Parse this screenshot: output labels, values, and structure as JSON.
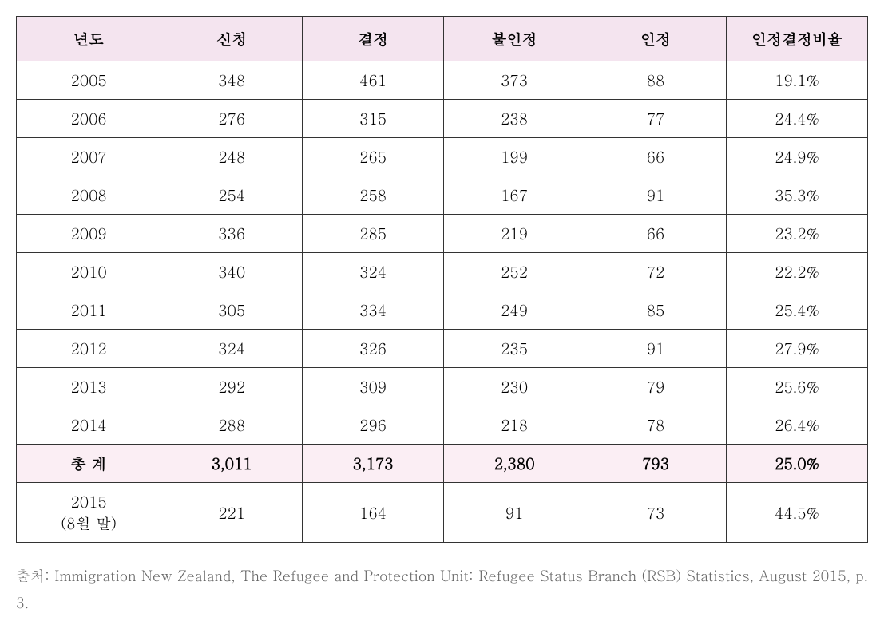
{
  "table": {
    "headers": [
      "년도",
      "신청",
      "결정",
      "불인정",
      "인정",
      "인정결정비율"
    ],
    "rows": [
      {
        "year": "2005",
        "apply": "348",
        "decide": "461",
        "reject": "373",
        "approve": "88",
        "rate": "19.1%",
        "total": false
      },
      {
        "year": "2006",
        "apply": "276",
        "decide": "315",
        "reject": "238",
        "approve": "77",
        "rate": "24.4%",
        "total": false
      },
      {
        "year": "2007",
        "apply": "248",
        "decide": "265",
        "reject": "199",
        "approve": "66",
        "rate": "24.9%",
        "total": false
      },
      {
        "year": "2008",
        "apply": "254",
        "decide": "258",
        "reject": "167",
        "approve": "91",
        "rate": "35.3%",
        "total": false
      },
      {
        "year": "2009",
        "apply": "336",
        "decide": "285",
        "reject": "219",
        "approve": "66",
        "rate": "23.2%",
        "total": false
      },
      {
        "year": "2010",
        "apply": "340",
        "decide": "324",
        "reject": "252",
        "approve": "72",
        "rate": "22.2%",
        "total": false
      },
      {
        "year": "2011",
        "apply": "305",
        "decide": "334",
        "reject": "249",
        "approve": "85",
        "rate": "25.4%",
        "total": false
      },
      {
        "year": "2012",
        "apply": "324",
        "decide": "326",
        "reject": "235",
        "approve": "91",
        "rate": "27.9%",
        "total": false
      },
      {
        "year": "2013",
        "apply": "292",
        "decide": "309",
        "reject": "230",
        "approve": "79",
        "rate": "25.6%",
        "total": false
      },
      {
        "year": "2014",
        "apply": "288",
        "decide": "296",
        "reject": "218",
        "approve": "78",
        "rate": "26.4%",
        "total": false
      },
      {
        "year": "총 계",
        "apply": "3,011",
        "decide": "3,173",
        "reject": "2,380",
        "approve": "793",
        "rate": "25.0%",
        "total": true
      },
      {
        "year": "2015\n(8월 말)",
        "apply": "221",
        "decide": "164",
        "reject": "91",
        "approve": "73",
        "rate": "44.5%",
        "total": false
      }
    ]
  },
  "source_label": "출처: Immigration New Zealand, The Refugee and Protection Unit: Refugee Status Branch (RSB) Statistics, August 2015, p. 3.",
  "colors": {
    "header_bg": "#f4e4ef",
    "total_bg": "#fbeef4",
    "border": "#333333",
    "text": "#000000",
    "source_text": "#666666"
  }
}
